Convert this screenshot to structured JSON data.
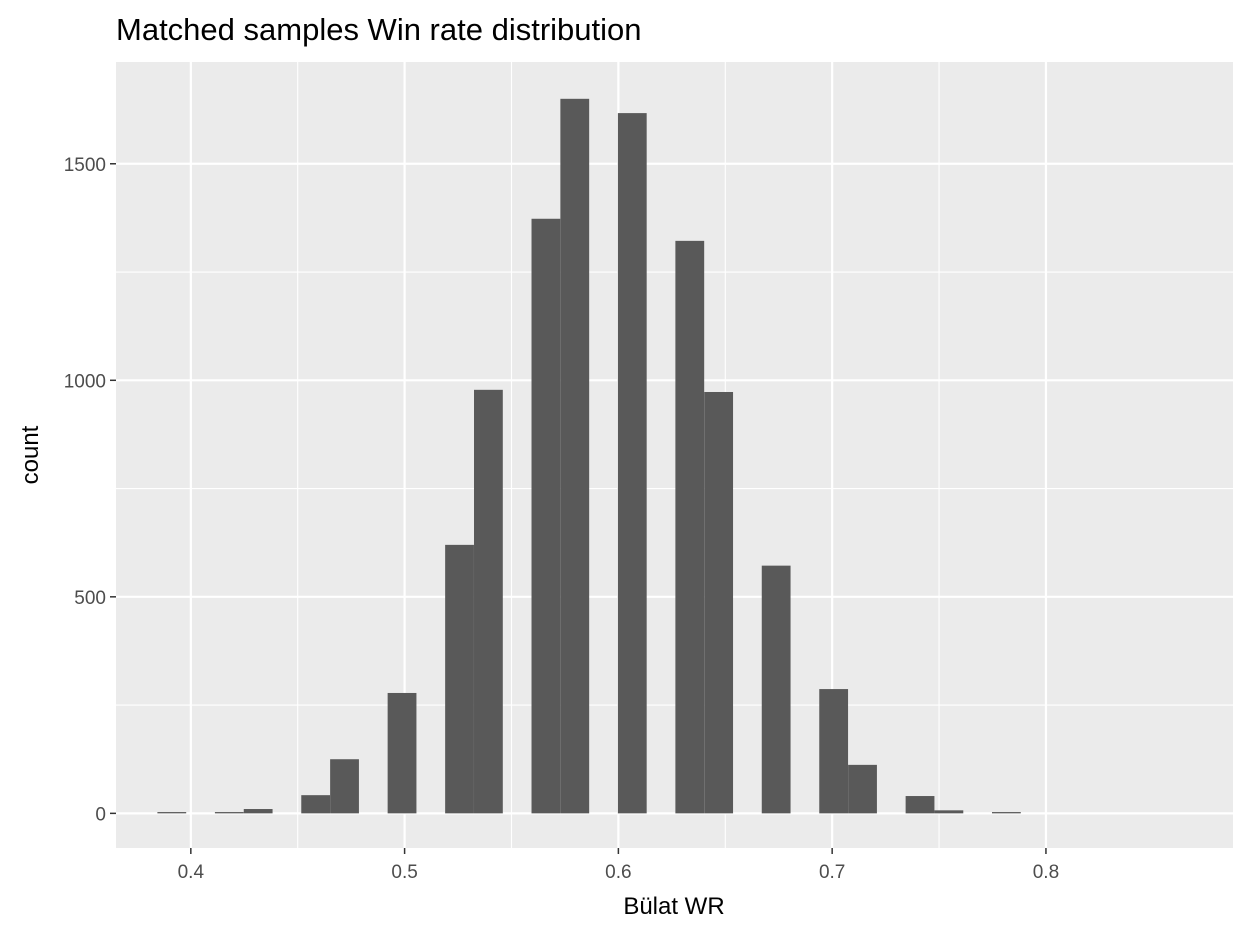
{
  "chart_data": {
    "type": "bar",
    "title": "Matched samples Win rate distribution",
    "xlabel": "Bülat WR",
    "ylabel": "count",
    "xlim": [
      0.365,
      0.8875
    ],
    "ylim": [
      -80,
      1735
    ],
    "x_ticks": [
      0.4,
      0.5,
      0.6,
      0.7,
      0.8
    ],
    "x_tick_labels": [
      "0.4",
      "0.5",
      "0.6",
      "0.7",
      "0.8"
    ],
    "y_ticks": [
      0,
      500,
      1000,
      1500
    ],
    "y_tick_labels": [
      "0",
      "500",
      "1000",
      "1500"
    ],
    "bin_width": 0.01347,
    "bins": [
      {
        "x": 0.3911,
        "count": 3
      },
      {
        "x": 0.418,
        "count": 3
      },
      {
        "x": 0.4315,
        "count": 10
      },
      {
        "x": 0.4584,
        "count": 42
      },
      {
        "x": 0.4719,
        "count": 125
      },
      {
        "x": 0.4988,
        "count": 278
      },
      {
        "x": 0.5257,
        "count": 620
      },
      {
        "x": 0.5392,
        "count": 978
      },
      {
        "x": 0.5661,
        "count": 1373
      },
      {
        "x": 0.5796,
        "count": 1650
      },
      {
        "x": 0.6065,
        "count": 1617
      },
      {
        "x": 0.6334,
        "count": 1322
      },
      {
        "x": 0.6469,
        "count": 973
      },
      {
        "x": 0.6738,
        "count": 572
      },
      {
        "x": 0.7007,
        "count": 287
      },
      {
        "x": 0.7142,
        "count": 112
      },
      {
        "x": 0.7411,
        "count": 40
      },
      {
        "x": 0.7546,
        "count": 7
      },
      {
        "x": 0.7815,
        "count": 3
      }
    ],
    "grid": true,
    "panel_color": "#ebebeb",
    "bar_color": "#595959",
    "grid_color": "#ffffff"
  }
}
